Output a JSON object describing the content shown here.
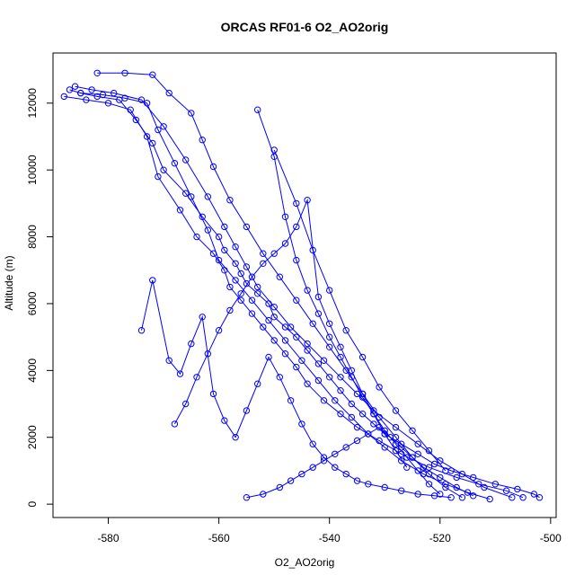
{
  "chart_data": {
    "type": "scatter",
    "title": "ORCAS RF01-6 O2_AO2orig",
    "xlabel": "O2_AO2orig",
    "ylabel": "Altitude (m)",
    "xlim": [
      -590,
      -499
    ],
    "ylim": [
      -400,
      13500
    ],
    "xticks": [
      -580,
      -560,
      -540,
      -520,
      -500
    ],
    "yticks": [
      0,
      2000,
      4000,
      6000,
      8000,
      10000,
      12000
    ],
    "xtick_labels": [
      "-580",
      "-560",
      "-540",
      "-520",
      "-500"
    ],
    "ytick_labels": [
      "0",
      "2000",
      "4000",
      "6000",
      "8000",
      "10000",
      "12000"
    ],
    "grid": false,
    "legend": "none",
    "color": "#0000ff",
    "series": [
      {
        "x": [
          -587,
          -585,
          -582,
          -578,
          -575,
          -572,
          -570,
          -566,
          -563,
          -560,
          -559,
          -557,
          -556,
          -555,
          -553,
          -551,
          -550,
          -548,
          -546,
          -544,
          -542,
          -540,
          -538,
          -536,
          -534,
          -532,
          -530,
          -527,
          -524,
          -521,
          -518,
          -514,
          -510,
          -506,
          -503,
          -502
        ],
        "y": [
          12400,
          12300,
          12200,
          12100,
          11500,
          10800,
          10000,
          9300,
          8600,
          8000,
          7600,
          7200,
          6900,
          6600,
          6300,
          6000,
          5600,
          5300,
          5000,
          4600,
          4200,
          3800,
          3400,
          3000,
          2700,
          2400,
          2100,
          1800,
          1500,
          1200,
          1000,
          800,
          600,
          450,
          300,
          200
        ]
      },
      {
        "x": [
          -588,
          -584,
          -580,
          -576,
          -573,
          -571,
          -567,
          -564,
          -561,
          -559,
          -558,
          -556,
          -554,
          -552,
          -550,
          -548,
          -546,
          -544,
          -541,
          -538,
          -535,
          -531,
          -527,
          -522,
          -517,
          -513,
          -508,
          -505
        ],
        "y": [
          12200,
          12100,
          12000,
          11800,
          11000,
          9800,
          8800,
          8000,
          7500,
          7000,
          6500,
          6100,
          5700,
          5300,
          4900,
          4500,
          4100,
          3600,
          3100,
          2700,
          2300,
          1900,
          1500,
          1100,
          800,
          600,
          400,
          200
        ]
      },
      {
        "x": [
          -586,
          -583,
          -579,
          -574,
          -570,
          -566,
          -562,
          -559,
          -557,
          -555,
          -553,
          -550,
          -547,
          -544,
          -541,
          -538,
          -535,
          -532,
          -528,
          -524,
          -520,
          -516,
          -512,
          -507
        ],
        "y": [
          12500,
          12400,
          12300,
          12100,
          11300,
          10300,
          9200,
          8300,
          7700,
          7100,
          6500,
          5900,
          5300,
          4800,
          4300,
          3800,
          3300,
          2800,
          2300,
          1800,
          1300,
          900,
          500,
          200
        ]
      },
      {
        "x": [
          -582,
          -577,
          -572,
          -569,
          -565,
          -563,
          -561,
          -558,
          -555,
          -552,
          -549,
          -546,
          -543,
          -540,
          -537,
          -534,
          -531,
          -528,
          -525,
          -522,
          -519,
          -516
        ],
        "y": [
          12900,
          12900,
          12850,
          12300,
          11700,
          10900,
          10100,
          9100,
          8300,
          7500,
          6800,
          6100,
          5400,
          4700,
          4000,
          3300,
          2600,
          2000,
          1400,
          900,
          500,
          200
        ]
      },
      {
        "x": [
          -585,
          -581,
          -577,
          -573,
          -571,
          -568,
          -565,
          -562,
          -560,
          -557,
          -554,
          -551,
          -548,
          -545,
          -542,
          -539,
          -536,
          -533,
          -530,
          -527,
          -523,
          -519,
          -515,
          -511
        ],
        "y": [
          12300,
          12250,
          12150,
          12000,
          11200,
          10200,
          9200,
          8200,
          7300,
          6700,
          6100,
          5500,
          4900,
          4300,
          3700,
          3100,
          2600,
          2100,
          1700,
          1300,
          900,
          600,
          350,
          150
        ]
      },
      {
        "x": [
          -574,
          -572,
          -569,
          -567,
          -565,
          -563,
          -561,
          -559,
          -557,
          -555,
          -553,
          -551,
          -549,
          -547,
          -545,
          -543,
          -541,
          -539,
          -537,
          -535,
          -533,
          -530,
          -527,
          -524,
          -521,
          -518
        ],
        "y": [
          5200,
          6700,
          4300,
          3900,
          4800,
          5600,
          3300,
          2500,
          2000,
          2800,
          3600,
          4400,
          3800,
          3100,
          2400,
          1800,
          1400,
          1100,
          900,
          700,
          600,
          500,
          400,
          300,
          250,
          200
        ]
      },
      {
        "x": [
          -568,
          -566,
          -564,
          -562,
          -560,
          -558,
          -556,
          -554,
          -552,
          -550,
          -548,
          -546,
          -544,
          -542,
          -540,
          -538,
          -536,
          -534,
          -532,
          -530,
          -528,
          -526
        ],
        "y": [
          2400,
          3000,
          3800,
          4500,
          5200,
          5800,
          6300,
          6800,
          7200,
          7500,
          7800,
          8300,
          9100,
          6200,
          5400,
          4700,
          4000,
          3300,
          2700,
          2100,
          1600,
          1100
        ]
      },
      {
        "x": [
          -555,
          -552,
          -549,
          -547,
          -545,
          -543,
          -541,
          -539,
          -537,
          -535,
          -533,
          -531,
          -529,
          -527,
          -525,
          -523,
          -520,
          -517,
          -514
        ],
        "y": [
          200,
          300,
          500,
          700,
          900,
          1100,
          1300,
          1500,
          1700,
          1900,
          2100,
          2300,
          2000,
          1700,
          1400,
          1100,
          800,
          500,
          250
        ]
      },
      {
        "x": [
          -550,
          -546,
          -543,
          -540,
          -537,
          -534,
          -531,
          -528,
          -525,
          -522,
          -519
        ],
        "y": [
          10600,
          9000,
          7600,
          6400,
          5200,
          4400,
          3500,
          2800,
          2200,
          1600,
          1000
        ]
      },
      {
        "x": [
          -553,
          -550,
          -548,
          -546,
          -544,
          -542,
          -540,
          -538,
          -536,
          -534,
          -532,
          -530,
          -528,
          -526,
          -524,
          -522,
          -520
        ],
        "y": [
          11800,
          10400,
          8600,
          7300,
          6400,
          5700,
          5000,
          4400,
          3800,
          3200,
          2700,
          2200,
          1800,
          1400,
          1000,
          600,
          300
        ]
      }
    ]
  }
}
